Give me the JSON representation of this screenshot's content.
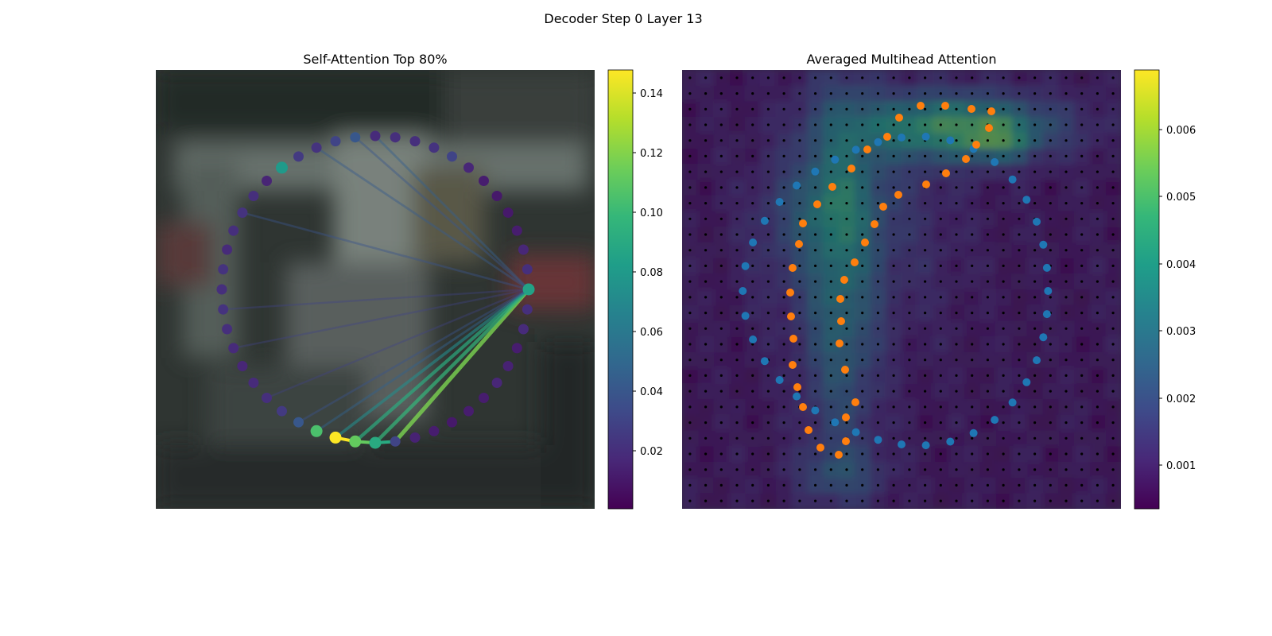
{
  "figure": {
    "suptitle": "Decoder Step 0 Layer 13"
  },
  "colormap": [
    "#440154",
    "#482878",
    "#3e4a89",
    "#31688e",
    "#26828e",
    "#1f9e89",
    "#35b779",
    "#6ece58",
    "#b5de2b",
    "#fde725"
  ],
  "chart_data": [
    {
      "type": "scatter",
      "title": "Self-Attention Top 80%",
      "description_kind": "graph of 48 contour points with attention edges from one query point",
      "n_points": 48,
      "query_index": 12,
      "node_values": [
        0.018,
        0.02,
        0.02,
        0.022,
        0.03,
        0.016,
        0.012,
        0.01,
        0.01,
        0.012,
        0.016,
        0.02,
        0.085,
        0.02,
        0.018,
        0.012,
        0.014,
        0.016,
        0.012,
        0.012,
        0.01,
        0.012,
        0.014,
        0.03,
        0.09,
        0.112,
        0.148,
        0.105,
        0.04,
        0.025,
        0.02,
        0.018,
        0.016,
        0.018,
        0.02,
        0.022,
        0.02,
        0.022,
        0.018,
        0.02,
        0.022,
        0.02,
        0.015,
        0.08,
        0.025,
        0.022,
        0.03,
        0.04
      ],
      "edges": [
        {
          "to": 23,
          "value": 0.118
        },
        {
          "to": 24,
          "value": 0.098
        },
        {
          "to": 25,
          "value": 0.092
        },
        {
          "to": 26,
          "value": 0.072
        },
        {
          "to": 27,
          "value": 0.046
        },
        {
          "to": 28,
          "value": 0.038
        },
        {
          "to": 0,
          "value": 0.045
        },
        {
          "to": 45,
          "value": 0.042
        },
        {
          "to": 47,
          "value": 0.04
        },
        {
          "to": 40,
          "value": 0.038
        },
        {
          "to": 35,
          "value": 0.03
        },
        {
          "to": 33,
          "value": 0.03
        },
        {
          "to": 30,
          "value": 0.03
        }
      ],
      "colorbar": {
        "min": 0.0,
        "max": 0.148,
        "ticks": [
          "0.02",
          "0.04",
          "0.06",
          "0.08",
          "0.10",
          "0.12",
          "0.14"
        ]
      }
    },
    {
      "type": "heatmap",
      "title": "Averaged Multihead Attention",
      "grid": [
        28,
        28
      ],
      "series": [
        {
          "name": "reference points (blue)",
          "color": "#1f77b4"
        },
        {
          "name": "reference points (orange)",
          "color": "#ff7f0e"
        }
      ],
      "colorbar": {
        "min": 0.0004,
        "max": 0.0069,
        "ticks": [
          "0.001",
          "0.002",
          "0.003",
          "0.004",
          "0.005",
          "0.006"
        ]
      }
    }
  ]
}
